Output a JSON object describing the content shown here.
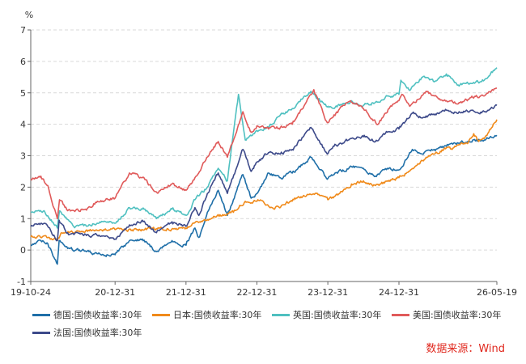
{
  "chart_data": {
    "type": "line",
    "y_unit": "%",
    "ylim": [
      -1,
      7
    ],
    "yticks": [
      "-1",
      "0",
      "1",
      "2",
      "3",
      "4",
      "5",
      "6",
      "7"
    ],
    "x_range": [
      "2019-10-24",
      "2026-05-19"
    ],
    "xtick_labels": [
      "19-10-24",
      "20-12-31",
      "21-12-31",
      "22-12-31",
      "23-12-31",
      "24-12-31",
      "26-05-19"
    ],
    "xtick_dates": [
      "2019-10-24",
      "2020-12-31",
      "2021-12-31",
      "2022-12-31",
      "2023-12-31",
      "2024-12-31",
      "2026-05-19"
    ],
    "grid": true,
    "legend_position": "bottom",
    "series": [
      {
        "name": "德国:国债收益率:30年",
        "color": "#1f6fa8",
        "points": [
          [
            "2019-10-24",
            0.15
          ],
          [
            "2019-12-15",
            0.3
          ],
          [
            "2020-01-20",
            0.2
          ],
          [
            "2020-03-09",
            -0.45
          ],
          [
            "2020-03-18",
            0.3
          ],
          [
            "2020-05-01",
            0.05
          ],
          [
            "2020-07-01",
            0.0
          ],
          [
            "2020-09-01",
            -0.1
          ],
          [
            "2020-11-01",
            -0.15
          ],
          [
            "2020-12-31",
            -0.15
          ],
          [
            "2021-03-15",
            0.3
          ],
          [
            "2021-05-20",
            0.35
          ],
          [
            "2021-08-01",
            -0.05
          ],
          [
            "2021-10-20",
            0.3
          ],
          [
            "2021-12-31",
            0.15
          ],
          [
            "2022-02-15",
            0.7
          ],
          [
            "2022-03-07",
            0.4
          ],
          [
            "2022-04-20",
            1.2
          ],
          [
            "2022-06-15",
            1.9
          ],
          [
            "2022-08-01",
            1.1
          ],
          [
            "2022-09-01",
            1.6
          ],
          [
            "2022-10-20",
            2.4
          ],
          [
            "2022-12-01",
            1.65
          ],
          [
            "2023-01-01",
            1.8
          ],
          [
            "2023-03-01",
            2.45
          ],
          [
            "2023-05-01",
            2.3
          ],
          [
            "2023-07-01",
            2.45
          ],
          [
            "2023-10-05",
            2.95
          ],
          [
            "2023-12-28",
            2.25
          ],
          [
            "2024-02-01",
            2.4
          ],
          [
            "2024-05-01",
            2.65
          ],
          [
            "2024-07-01",
            2.6
          ],
          [
            "2024-09-01",
            2.35
          ],
          [
            "2024-11-01",
            2.6
          ],
          [
            "2024-12-31",
            2.55
          ],
          [
            "2025-03-10",
            3.2
          ],
          [
            "2025-05-01",
            3.05
          ],
          [
            "2025-07-01",
            3.2
          ],
          [
            "2025-09-01",
            3.3
          ],
          [
            "2025-11-01",
            3.4
          ],
          [
            "2026-01-15",
            3.5
          ],
          [
            "2026-03-15",
            3.5
          ],
          [
            "2026-05-19",
            3.65
          ]
        ]
      },
      {
        "name": "日本:国债收益率:30年",
        "color": "#f08a1a",
        "points": [
          [
            "2019-10-24",
            0.42
          ],
          [
            "2020-01-01",
            0.45
          ],
          [
            "2020-03-09",
            0.3
          ],
          [
            "2020-04-01",
            0.55
          ],
          [
            "2020-07-01",
            0.6
          ],
          [
            "2020-12-31",
            0.65
          ],
          [
            "2021-06-01",
            0.65
          ],
          [
            "2021-12-31",
            0.7
          ],
          [
            "2022-03-01",
            0.9
          ],
          [
            "2022-06-01",
            1.05
          ],
          [
            "2022-09-01",
            1.2
          ],
          [
            "2022-11-01",
            1.55
          ],
          [
            "2022-12-31",
            1.55
          ],
          [
            "2023-02-01",
            1.55
          ],
          [
            "2023-04-01",
            1.3
          ],
          [
            "2023-08-01",
            1.7
          ],
          [
            "2023-11-01",
            1.8
          ],
          [
            "2023-12-31",
            1.6
          ],
          [
            "2024-03-01",
            1.8
          ],
          [
            "2024-05-01",
            2.1
          ],
          [
            "2024-07-01",
            2.2
          ],
          [
            "2024-09-01",
            2.05
          ],
          [
            "2024-12-31",
            2.3
          ],
          [
            "2025-03-01",
            2.55
          ],
          [
            "2025-05-20",
            2.95
          ],
          [
            "2025-07-01",
            3.05
          ],
          [
            "2025-09-01",
            3.25
          ],
          [
            "2025-10-01",
            3.2
          ],
          [
            "2025-11-10",
            3.35
          ],
          [
            "2025-12-15",
            3.4
          ],
          [
            "2026-01-20",
            3.7
          ],
          [
            "2026-02-10",
            3.5
          ],
          [
            "2026-03-20",
            3.6
          ],
          [
            "2026-05-19",
            4.15
          ]
        ]
      },
      {
        "name": "英国:国债收益率:30年",
        "color": "#4fc0c0",
        "points": [
          [
            "2019-10-24",
            1.2
          ],
          [
            "2020-01-01",
            1.25
          ],
          [
            "2020-03-09",
            0.7
          ],
          [
            "2020-03-20",
            1.25
          ],
          [
            "2020-06-01",
            0.75
          ],
          [
            "2020-08-01",
            0.8
          ],
          [
            "2020-11-01",
            0.9
          ],
          [
            "2020-12-31",
            0.85
          ],
          [
            "2021-03-15",
            1.35
          ],
          [
            "2021-05-20",
            1.3
          ],
          [
            "2021-08-01",
            1.0
          ],
          [
            "2021-10-20",
            1.3
          ],
          [
            "2021-12-31",
            1.1
          ],
          [
            "2022-02-15",
            1.6
          ],
          [
            "2022-04-20",
            2.0
          ],
          [
            "2022-06-15",
            2.6
          ],
          [
            "2022-08-01",
            2.2
          ],
          [
            "2022-09-27",
            4.95
          ],
          [
            "2022-10-10",
            4.4
          ],
          [
            "2022-11-01",
            3.5
          ],
          [
            "2022-12-31",
            3.8
          ],
          [
            "2023-03-01",
            3.9
          ],
          [
            "2023-05-01",
            4.3
          ],
          [
            "2023-07-01",
            4.5
          ],
          [
            "2023-08-15",
            4.8
          ],
          [
            "2023-10-05",
            5.05
          ],
          [
            "2023-12-28",
            4.55
          ],
          [
            "2024-03-01",
            4.6
          ],
          [
            "2024-05-01",
            4.75
          ],
          [
            "2024-07-01",
            4.6
          ],
          [
            "2024-09-01",
            4.7
          ],
          [
            "2024-11-01",
            4.9
          ],
          [
            "2024-12-31",
            4.95
          ],
          [
            "2025-01-10",
            5.4
          ],
          [
            "2025-03-01",
            5.1
          ],
          [
            "2025-05-01",
            5.5
          ],
          [
            "2025-07-01",
            5.35
          ],
          [
            "2025-09-01",
            5.6
          ],
          [
            "2025-11-01",
            5.25
          ],
          [
            "2026-01-15",
            5.3
          ],
          [
            "2026-03-15",
            5.4
          ],
          [
            "2026-05-19",
            5.8
          ]
        ]
      },
      {
        "name": "美国:国债收益率:30年",
        "color": "#e05a5a",
        "points": [
          [
            "2019-10-24",
            2.25
          ],
          [
            "2019-12-15",
            2.35
          ],
          [
            "2020-01-20",
            2.05
          ],
          [
            "2020-03-09",
            1.0
          ],
          [
            "2020-03-20",
            1.6
          ],
          [
            "2020-05-01",
            1.25
          ],
          [
            "2020-08-01",
            1.3
          ],
          [
            "2020-10-01",
            1.55
          ],
          [
            "2020-12-31",
            1.65
          ],
          [
            "2021-03-15",
            2.45
          ],
          [
            "2021-05-20",
            2.3
          ],
          [
            "2021-08-01",
            1.85
          ],
          [
            "2021-10-20",
            2.1
          ],
          [
            "2021-12-31",
            1.9
          ],
          [
            "2022-02-15",
            2.3
          ],
          [
            "2022-05-01",
            3.05
          ],
          [
            "2022-06-15",
            3.45
          ],
          [
            "2022-08-01",
            2.95
          ],
          [
            "2022-10-20",
            4.4
          ],
          [
            "2022-12-01",
            3.75
          ],
          [
            "2022-12-31",
            3.95
          ],
          [
            "2023-03-01",
            3.85
          ],
          [
            "2023-05-01",
            3.9
          ],
          [
            "2023-07-01",
            4.0
          ],
          [
            "2023-10-20",
            5.1
          ],
          [
            "2023-12-28",
            4.05
          ],
          [
            "2024-02-01",
            4.3
          ],
          [
            "2024-04-25",
            4.75
          ],
          [
            "2024-07-01",
            4.5
          ],
          [
            "2024-09-15",
            4.0
          ],
          [
            "2024-11-15",
            4.55
          ],
          [
            "2024-12-31",
            4.75
          ],
          [
            "2025-01-15",
            4.95
          ],
          [
            "2025-03-01",
            4.6
          ],
          [
            "2025-05-20",
            5.05
          ],
          [
            "2025-07-01",
            4.9
          ],
          [
            "2025-09-01",
            4.75
          ],
          [
            "2025-11-01",
            4.65
          ],
          [
            "2026-01-15",
            4.85
          ],
          [
            "2026-03-15",
            4.9
          ],
          [
            "2026-05-19",
            5.15
          ]
        ]
      },
      {
        "name": "法国:国债收益率:30年",
        "color": "#3d4a8a",
        "points": [
          [
            "2019-10-24",
            0.75
          ],
          [
            "2019-12-15",
            0.85
          ],
          [
            "2020-01-20",
            0.75
          ],
          [
            "2020-03-09",
            0.3
          ],
          [
            "2020-03-18",
            0.95
          ],
          [
            "2020-05-01",
            0.55
          ],
          [
            "2020-08-01",
            0.5
          ],
          [
            "2020-11-01",
            0.45
          ],
          [
            "2020-12-31",
            0.35
          ],
          [
            "2021-03-15",
            0.8
          ],
          [
            "2021-05-20",
            0.95
          ],
          [
            "2021-08-01",
            0.55
          ],
          [
            "2021-10-20",
            0.9
          ],
          [
            "2021-12-31",
            0.75
          ],
          [
            "2022-02-15",
            1.35
          ],
          [
            "2022-03-07",
            1.1
          ],
          [
            "2022-04-20",
            1.8
          ],
          [
            "2022-06-15",
            2.45
          ],
          [
            "2022-08-01",
            1.8
          ],
          [
            "2022-10-20",
            3.2
          ],
          [
            "2022-12-01",
            2.5
          ],
          [
            "2022-12-31",
            2.8
          ],
          [
            "2023-03-01",
            3.1
          ],
          [
            "2023-05-01",
            3.05
          ],
          [
            "2023-07-01",
            3.2
          ],
          [
            "2023-10-05",
            3.9
          ],
          [
            "2023-12-28",
            3.05
          ],
          [
            "2024-02-01",
            3.3
          ],
          [
            "2024-05-01",
            3.55
          ],
          [
            "2024-07-01",
            3.6
          ],
          [
            "2024-09-01",
            3.45
          ],
          [
            "2024-11-01",
            3.75
          ],
          [
            "2024-12-31",
            3.85
          ],
          [
            "2025-03-10",
            4.35
          ],
          [
            "2025-05-01",
            4.2
          ],
          [
            "2025-07-01",
            4.3
          ],
          [
            "2025-09-01",
            4.45
          ],
          [
            "2025-11-01",
            4.35
          ],
          [
            "2026-01-15",
            4.45
          ],
          [
            "2026-03-15",
            4.4
          ],
          [
            "2026-05-19",
            4.6
          ]
        ]
      }
    ]
  },
  "source": {
    "text": "数据来源：Wind",
    "color": "#e0281e"
  },
  "axis_color": "#666666"
}
